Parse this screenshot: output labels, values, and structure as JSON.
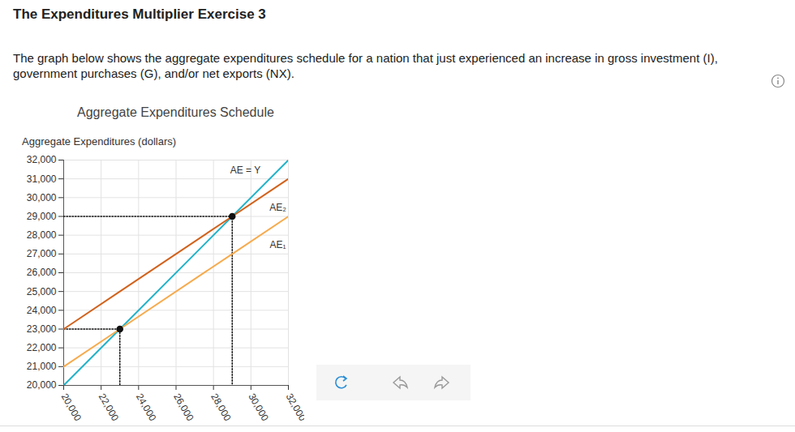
{
  "header": {
    "title": "The Expenditures Multiplier Exercise 3",
    "description": "The graph below shows the aggregate expenditures schedule for a nation that just experienced an increase in gross investment (I), government purchases (G), and/or net exports (NX)."
  },
  "chart_data": {
    "type": "line",
    "title": "Aggregate Expenditures Schedule",
    "y_label": "Aggregate Expenditures (dollars)",
    "x": [
      20000,
      23000,
      29000,
      32000
    ],
    "series": [
      {
        "name": "AE = Y",
        "color": "#22b3c9",
        "values": [
          20000,
          23000,
          29000,
          32000
        ]
      },
      {
        "name": "AE₂",
        "color": "#d2621c",
        "values": [
          23000,
          25000,
          29000,
          31000
        ]
      },
      {
        "name": "AE₁",
        "color": "#f7aa4c",
        "values": [
          21000,
          23000,
          27000,
          29000
        ]
      }
    ],
    "points": {
      "x": [
        23000,
        29000
      ],
      "y": [
        23000,
        29000
      ],
      "color": "#111111",
      "marker": "circle",
      "line_style": "dotted"
    },
    "xlim": [
      20000,
      32000
    ],
    "ylim": [
      20000,
      32000
    ],
    "xticks": [
      {
        "value": 20000,
        "label": "20,000"
      },
      {
        "value": 22000,
        "label": "22,000"
      },
      {
        "value": 24000,
        "label": "24,000"
      },
      {
        "value": 26000,
        "label": "26,000"
      },
      {
        "value": 28000,
        "label": "28,000"
      },
      {
        "value": 30000,
        "label": "30,000"
      },
      {
        "value": 32000,
        "label": "32,000"
      }
    ],
    "yticks": [
      {
        "value": 20000,
        "label": "20,000"
      },
      {
        "value": 21000,
        "label": "21,000"
      },
      {
        "value": 22000,
        "label": "22,000"
      },
      {
        "value": 23000,
        "label": "23,000"
      },
      {
        "value": 24000,
        "label": "24,000"
      },
      {
        "value": 25000,
        "label": "25,000"
      },
      {
        "value": 26000,
        "label": "26,000"
      },
      {
        "value": 27000,
        "label": "27,000"
      },
      {
        "value": 28000,
        "label": "28,000"
      },
      {
        "value": 29000,
        "label": "29,000"
      },
      {
        "value": 30000,
        "label": "30,000"
      },
      {
        "value": 31000,
        "label": "31,000"
      },
      {
        "value": 32000,
        "label": "32,000"
      }
    ],
    "grid": true
  }
}
